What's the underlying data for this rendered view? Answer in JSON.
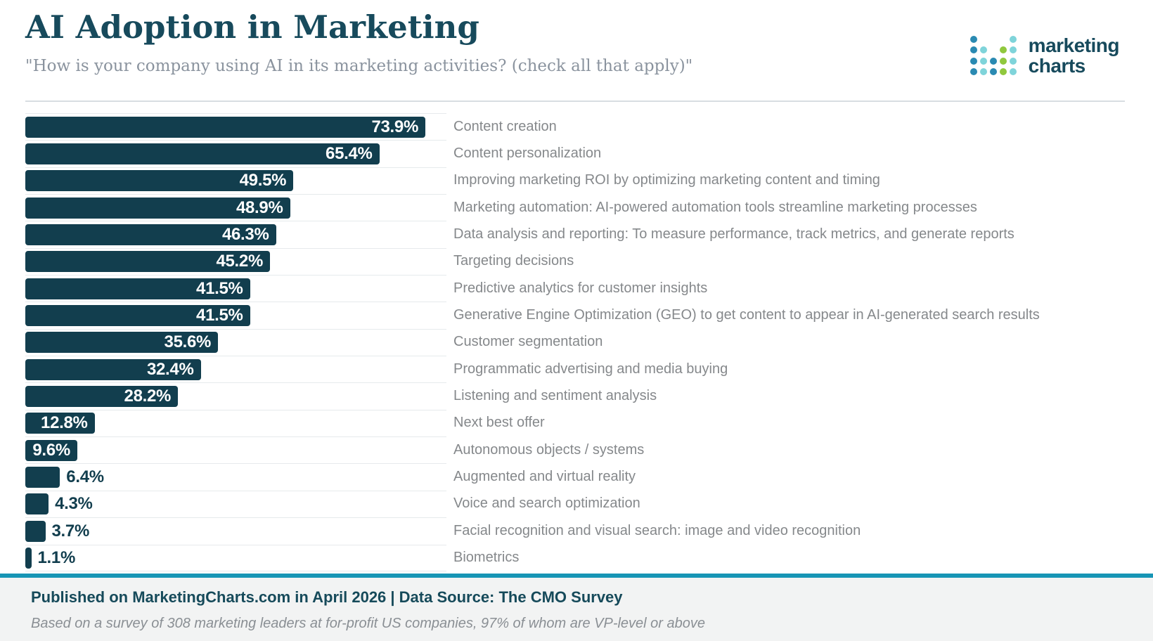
{
  "header": {
    "title": "AI Adoption in Marketing",
    "subtitle": "\"How is your company using AI in its marketing activities? (check all that apply)\"",
    "logo": {
      "word1": "marketing",
      "word2": "charts",
      "colors": {
        "blue": "#2a8ab2",
        "teal": "#7fd4da",
        "green": "#90c83d",
        "text": "#174a5c"
      },
      "dot_grid": [
        [
          "blue",
          "",
          "",
          "",
          "teal"
        ],
        [
          "blue",
          "teal",
          "",
          "green",
          "teal"
        ],
        [
          "blue",
          "teal",
          "blue",
          "green",
          "teal"
        ],
        [
          "blue",
          "teal",
          "blue",
          "green",
          "teal"
        ]
      ]
    }
  },
  "chart_data": {
    "type": "bar",
    "orientation": "horizontal",
    "title": "AI Adoption in Marketing",
    "categories": [
      "Content creation",
      "Content personalization",
      "Improving marketing ROI by optimizing marketing content and timing",
      "Marketing automation: AI-powered automation tools streamline marketing processes",
      "Data analysis and reporting: To measure performance, track metrics, and generate reports",
      "Targeting decisions",
      "Predictive analytics for customer insights",
      "Generative Engine Optimization (GEO) to get content to appear in AI-generated search results",
      "Customer segmentation",
      "Programmatic advertising and media buying",
      "Listening and sentiment analysis",
      "Next best offer",
      "Autonomous objects / systems",
      "Augmented and virtual reality",
      "Voice and search optimization",
      "Facial recognition and visual search: image and video recognition",
      "Biometrics"
    ],
    "values": [
      73.9,
      65.4,
      49.5,
      48.9,
      46.3,
      45.2,
      41.5,
      41.5,
      35.6,
      32.4,
      28.2,
      12.8,
      9.6,
      6.4,
      4.3,
      3.7,
      1.1
    ],
    "value_label_suffix": "%",
    "bar_color": "#123e4e",
    "value_inside_color": "#ffffff",
    "value_outside_color": "#123e4e",
    "xlim": [
      0,
      77.8
    ],
    "grid": "row-separators-only",
    "legend": "none"
  },
  "footer": {
    "line1": "Published on MarketingCharts.com in April 2026 | Data Source: The CMO Survey",
    "line2": "Based on a survey of 308 marketing leaders at for-profit US companies, 97% of whom are VP-level or above",
    "accent_color": "#1795b5",
    "background": "#f2f3f3"
  }
}
